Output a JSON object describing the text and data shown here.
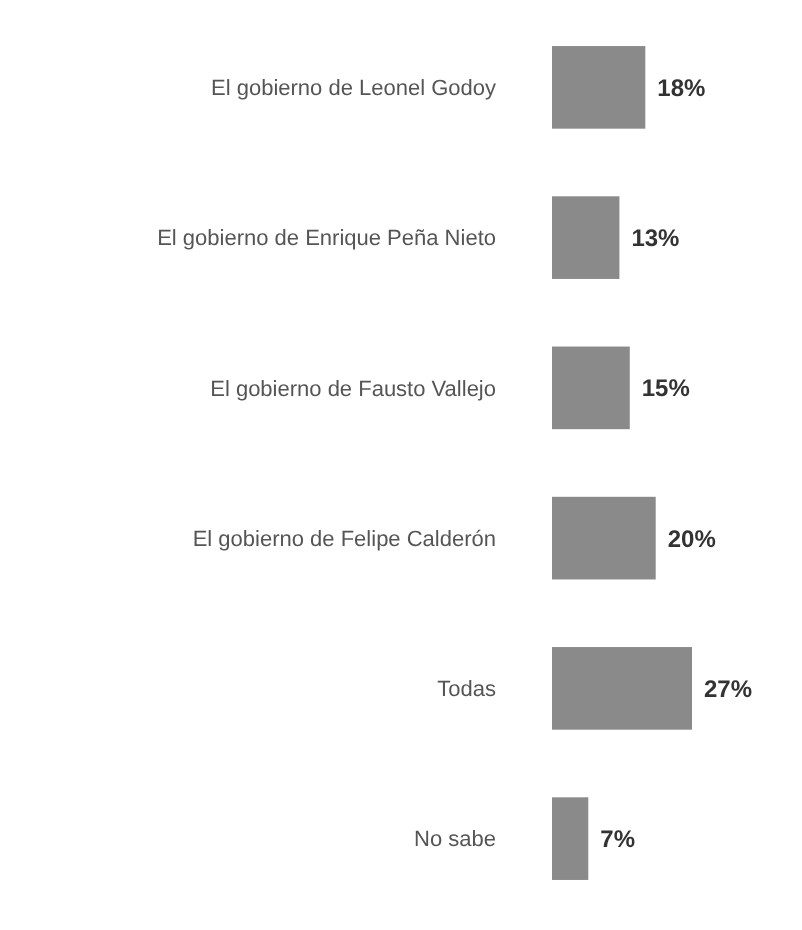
{
  "chart_data": {
    "type": "bar",
    "orientation": "horizontal",
    "categories": [
      "El gobierno de Leonel Godoy",
      "El gobierno de Enrique Peña Nieto",
      "El gobierno de Fausto Vallejo",
      "El gobierno de Felipe Calderón",
      "Todas",
      "No sabe"
    ],
    "values": [
      18,
      13,
      15,
      20,
      27,
      7
    ],
    "value_labels": [
      "18%",
      "13%",
      "15%",
      "20%",
      "27%",
      "7%"
    ],
    "color": "#8a8a8a"
  }
}
